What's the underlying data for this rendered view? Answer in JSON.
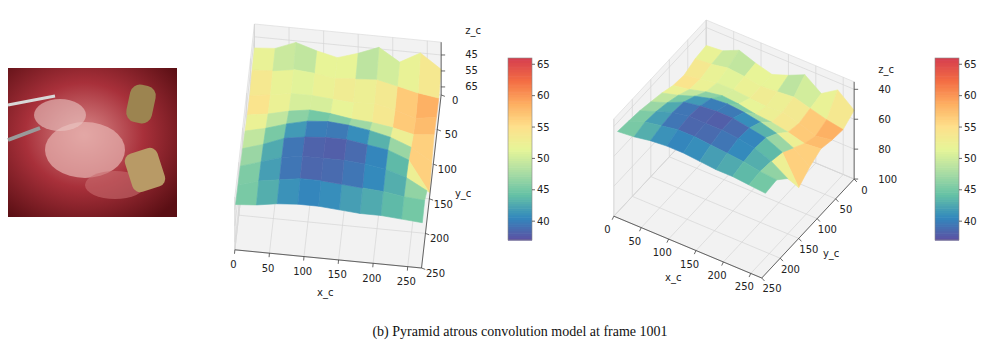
{
  "caption": "(b) Pyramid atrous convolution model at frame 1001",
  "chart_data": [
    {
      "type": "surface",
      "x_label": "x_c",
      "y_label": "y_c",
      "z_label": "z_c",
      "x": [
        0,
        30,
        60,
        90,
        120,
        150,
        180,
        210,
        240,
        270
      ],
      "y": [
        0,
        30,
        60,
        90,
        120,
        150,
        180,
        210,
        240
      ],
      "z": [
        [
          52,
          51,
          46,
          50,
          53,
          49,
          44,
          52,
          45,
          54
        ],
        [
          53,
          52,
          50,
          51,
          53,
          52,
          51,
          54,
          57,
          59
        ],
        [
          56,
          54,
          52,
          52,
          53,
          54,
          53,
          56,
          60,
          58
        ],
        [
          55,
          53,
          50,
          48,
          49,
          51,
          52,
          54,
          57,
          56
        ],
        [
          52,
          49,
          45,
          42,
          41,
          42,
          44,
          47,
          52,
          60
        ],
        [
          50,
          46,
          41,
          39,
          38,
          38,
          40,
          42,
          47,
          66
        ],
        [
          48,
          44,
          40,
          38,
          38,
          38,
          39,
          41,
          45,
          52
        ],
        [
          47,
          43,
          41,
          39,
          39,
          40,
          41,
          42,
          44,
          45
        ],
        [
          46,
          45,
          43,
          42,
          42,
          43,
          44,
          44,
          45,
          46
        ]
      ],
      "xlim": [
        0,
        270
      ],
      "xticks": [
        0,
        50,
        100,
        150,
        200,
        250
      ],
      "ylim": [
        0,
        250
      ],
      "yticks": [
        0,
        50,
        100,
        150,
        200,
        250
      ],
      "zlim": [
        37,
        70
      ],
      "zticks": [
        45,
        55,
        65
      ],
      "colorbar": {
        "range": [
          37,
          66
        ],
        "ticks": [
          40,
          45,
          50,
          55,
          60,
          65
        ]
      }
    },
    {
      "type": "surface",
      "x_label": "x_c",
      "y_label": "y_c",
      "z_label": "z_c",
      "x": [
        0,
        30,
        60,
        90,
        120,
        150,
        180,
        210,
        240,
        270
      ],
      "y": [
        0,
        30,
        60,
        90,
        120,
        150,
        180,
        210,
        240
      ],
      "z": [
        [
          52,
          51,
          46,
          50,
          53,
          49,
          44,
          52,
          45,
          54
        ],
        [
          53,
          52,
          50,
          51,
          53,
          52,
          51,
          54,
          57,
          59
        ],
        [
          56,
          54,
          52,
          52,
          53,
          54,
          53,
          56,
          60,
          58
        ],
        [
          55,
          53,
          50,
          48,
          49,
          51,
          52,
          54,
          57,
          56
        ],
        [
          52,
          49,
          45,
          42,
          41,
          42,
          44,
          47,
          52,
          60
        ],
        [
          50,
          46,
          41,
          39,
          38,
          38,
          40,
          42,
          47,
          66
        ],
        [
          48,
          44,
          40,
          38,
          38,
          38,
          39,
          41,
          45,
          52
        ],
        [
          47,
          43,
          41,
          39,
          39,
          40,
          41,
          42,
          44,
          45
        ],
        [
          46,
          45,
          43,
          42,
          42,
          43,
          44,
          44,
          45,
          46
        ]
      ],
      "xlim": [
        0,
        270
      ],
      "xticks": [
        0,
        50,
        100,
        150,
        200,
        250
      ],
      "ylim": [
        0,
        250
      ],
      "yticks": [
        0,
        50,
        100,
        150,
        200,
        250
      ],
      "zlim": [
        35,
        100
      ],
      "zticks": [
        40,
        60,
        80,
        100
      ],
      "colorbar": {
        "range": [
          37,
          66
        ],
        "ticks": [
          40,
          45,
          50,
          55,
          60,
          65
        ]
      }
    }
  ]
}
